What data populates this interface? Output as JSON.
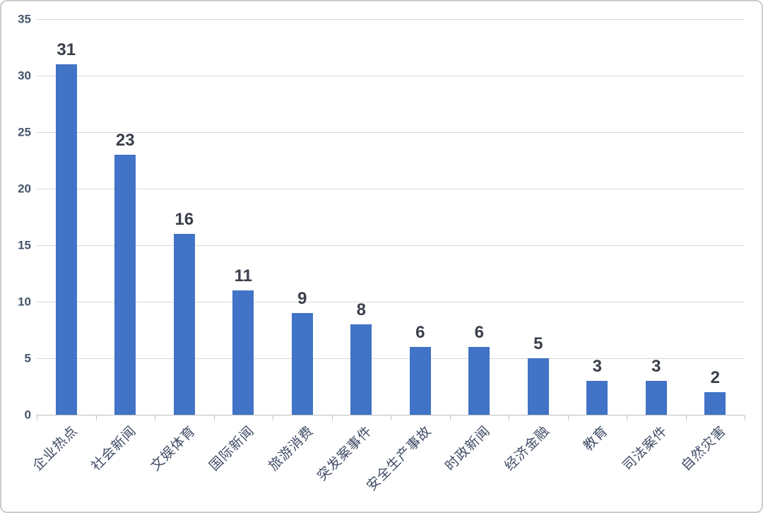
{
  "chart_data": {
    "type": "bar",
    "title": "",
    "xlabel": "",
    "ylabel": "",
    "categories": [
      "企业热点",
      "社会新闻",
      "文娱体育",
      "国际新闻",
      "旅游消费",
      "突发案事件",
      "安全生产事故",
      "时政新闻",
      "经济金融",
      "教育",
      "司法案件",
      "自然灾害"
    ],
    "values": [
      31,
      23,
      16,
      11,
      9,
      8,
      6,
      6,
      5,
      3,
      3,
      2
    ],
    "ylim": [
      0,
      35
    ],
    "ytick_interval": 5,
    "ytick_labels": [
      "0",
      "5",
      "10",
      "15",
      "20",
      "25",
      "30",
      "35"
    ],
    "grid": true,
    "legend_position": "none",
    "data_labels_shown": true,
    "category_label_rotation_deg": 45,
    "colors": {
      "bar_fill": "#4173c6",
      "gridline": "#d8d8d8",
      "axis_line": "#bfbfbf",
      "value_label": "#3a3f4a",
      "y_tick_label": "#44546a",
      "category_label": "#404c66",
      "background": "#ffffff",
      "border": "#c9cccf"
    }
  }
}
